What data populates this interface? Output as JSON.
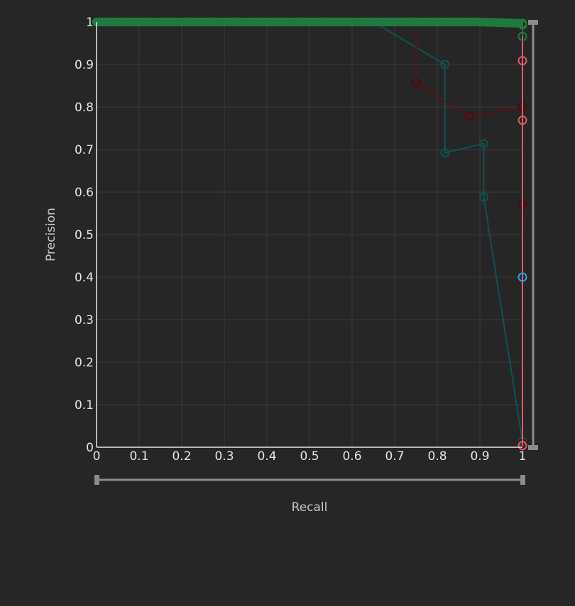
{
  "chart_data": {
    "type": "line",
    "xlabel": "Recall",
    "ylabel": "Precision",
    "xlim": [
      0,
      1
    ],
    "ylim": [
      0,
      1
    ],
    "grid": true,
    "x_ticks": [
      "0",
      "0.1",
      "0.2",
      "0.3",
      "0.4",
      "0.5",
      "0.6",
      "0.7",
      "0.8",
      "0.9",
      "1"
    ],
    "y_ticks": [
      "0",
      "0.1",
      "0.2",
      "0.3",
      "0.4",
      "0.5",
      "0.6",
      "0.7",
      "0.8",
      "0.9",
      "1"
    ],
    "series": [
      {
        "color": "#0f5254",
        "points": [
          [
            0.65,
            1.0
          ],
          [
            0.818,
            0.9
          ],
          [
            0.818,
            0.692
          ],
          [
            0.909,
            0.714
          ],
          [
            0.909,
            0.588
          ],
          [
            1.0,
            0.013
          ]
        ],
        "markers": [
          [
            0.818,
            0.9
          ],
          [
            0.818,
            0.692
          ],
          [
            0.909,
            0.714
          ],
          [
            0.909,
            0.588
          ],
          [
            1.0,
            0.013
          ]
        ],
        "marker_stroke": "#0f5254"
      },
      {
        "color": "#5e1015",
        "points": [
          [
            0.75,
            1.0
          ],
          [
            0.75,
            0.857
          ],
          [
            0.875,
            0.778
          ],
          [
            1.0,
            0.8
          ],
          [
            1.0,
            0.571
          ],
          [
            1.0,
            0.009
          ]
        ],
        "markers": [
          [
            0.75,
            0.857
          ],
          [
            0.875,
            0.778
          ],
          [
            1.0,
            0.8
          ],
          [
            1.0,
            0.571
          ],
          [
            1.0,
            0.009
          ]
        ],
        "marker_stroke": "#4e0a0f"
      },
      {
        "color": "#e05b66",
        "points": [
          [
            1.0,
            1.0
          ],
          [
            1.0,
            0.909
          ],
          [
            1.0,
            0.769
          ],
          [
            1.0,
            0.004
          ]
        ],
        "markers": [
          [
            1.0,
            0.909
          ],
          [
            1.0,
            0.769
          ],
          [
            1.0,
            0.004
          ]
        ],
        "marker_stroke": "#e05b66"
      },
      {
        "color": "#2e9cf0",
        "points": [
          [
            1.0,
            0.4
          ]
        ],
        "markers": [
          [
            1.0,
            0.4
          ]
        ],
        "marker_stroke": "#2e9cf0"
      },
      {
        "color": "#1e7a3e",
        "points": [
          [
            0.0,
            1.0
          ],
          [
            0.1,
            1.0
          ],
          [
            0.2,
            1.0
          ],
          [
            0.3,
            1.0
          ],
          [
            0.4,
            1.0
          ],
          [
            0.5,
            1.0
          ],
          [
            0.6,
            1.0
          ],
          [
            0.7,
            1.0
          ],
          [
            0.8,
            1.0
          ],
          [
            0.9,
            1.0
          ],
          [
            0.95,
            0.998
          ],
          [
            1.0,
            0.997
          ],
          [
            1.0,
            0.966
          ]
        ],
        "markers_dense": {
          "x_from": 0.0,
          "x_to": 0.99,
          "count": 140,
          "y": 1.0,
          "end_y": 0.997
        },
        "markers": [
          [
            1.0,
            0.997
          ],
          [
            1.0,
            0.993
          ],
          [
            1.0,
            0.966
          ]
        ],
        "marker_stroke": "#1e7a3e"
      }
    ]
  }
}
